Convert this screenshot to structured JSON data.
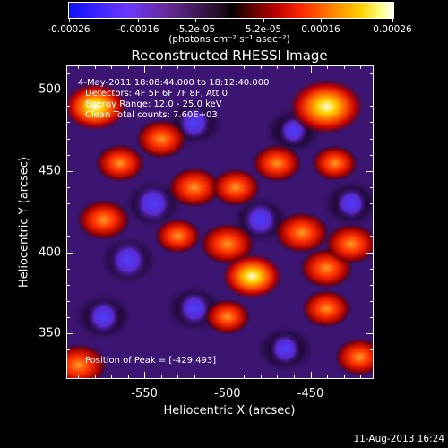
{
  "colorbar": {
    "tick_labels": [
      "-0.00026",
      "-0.00016",
      "-5.2e-05",
      "5.2e-05",
      "0.00016",
      "0.00026"
    ],
    "units_text": "(photons cm⁻² s⁻¹ asec⁻²)"
  },
  "plot": {
    "title": "Reconstructed RHESSI Image",
    "xlabel": "Heliocentric X (arcsec)",
    "ylabel": "Heliocentric Y (arcsec)",
    "xticks": [
      "-550",
      "-500",
      "-450"
    ],
    "yticks": [
      "500",
      "450",
      "400",
      "350"
    ],
    "annotations": {
      "time": "4-May-2011 18:08:44.000 to 18:12:40.000",
      "detectors": "Detectors: 4F 5F 6F 7F 8F, Att 0",
      "energy": "Energy Range: 12.0 - 25.0 keV",
      "clean": "Clean     Total counts: 7.60E+03",
      "peak": "Position of Peak = [-429,493]"
    }
  },
  "footer": {
    "date": "11-Aug-2013 16:24"
  },
  "chart_data": {
    "type": "heatmap",
    "title": "Reconstructed RHESSI Image",
    "xlabel": "Heliocentric X (arcsec)",
    "ylabel": "Heliocentric Y (arcsec)",
    "xlim": [
      -597,
      -412
    ],
    "ylim": [
      322,
      515
    ],
    "xticks": [
      -550,
      -500,
      -450
    ],
    "yticks": [
      350,
      400,
      450,
      500
    ],
    "colorbar_range": [
      -0.00026,
      0.00026
    ],
    "peak_position": [
      -429,
      493
    ],
    "bright_sources": [
      {
        "x": -440,
        "y": 490,
        "intensity": 0.00026
      },
      {
        "x": -580,
        "y": 490,
        "intensity": 0.0002
      },
      {
        "x": -565,
        "y": 455,
        "intensity": 0.00012
      },
      {
        "x": -540,
        "y": 470,
        "intensity": 0.00013
      },
      {
        "x": -520,
        "y": 440,
        "intensity": 0.00014
      },
      {
        "x": -575,
        "y": 420,
        "intensity": 0.00014
      },
      {
        "x": -495,
        "y": 440,
        "intensity": 0.00012
      },
      {
        "x": -470,
        "y": 455,
        "intensity": 0.00012
      },
      {
        "x": -500,
        "y": 405,
        "intensity": 0.00015
      },
      {
        "x": -455,
        "y": 412,
        "intensity": 0.00015
      },
      {
        "x": -485,
        "y": 385,
        "intensity": 0.00018
      },
      {
        "x": -440,
        "y": 390,
        "intensity": 0.00014
      },
      {
        "x": -425,
        "y": 405,
        "intensity": 0.00014
      },
      {
        "x": -440,
        "y": 365,
        "intensity": 0.00012
      },
      {
        "x": -500,
        "y": 360,
        "intensity": 0.0001
      },
      {
        "x": -590,
        "y": 330,
        "intensity": 0.00016
      },
      {
        "x": -420,
        "y": 335,
        "intensity": 0.00012
      },
      {
        "x": -435,
        "y": 455,
        "intensity": 0.0001
      },
      {
        "x": -530,
        "y": 410,
        "intensity": 0.0001
      }
    ],
    "dark_sources": [
      {
        "x": -545,
        "y": 430,
        "intensity": -0.00018
      },
      {
        "x": -520,
        "y": 480,
        "intensity": -0.00014
      },
      {
        "x": -480,
        "y": 420,
        "intensity": -0.00016
      },
      {
        "x": -560,
        "y": 395,
        "intensity": -0.00018
      },
      {
        "x": -520,
        "y": 365,
        "intensity": -0.00014
      },
      {
        "x": -465,
        "y": 340,
        "intensity": -0.00012
      },
      {
        "x": -575,
        "y": 360,
        "intensity": -0.00014
      },
      {
        "x": -460,
        "y": 475,
        "intensity": -0.0001
      },
      {
        "x": -425,
        "y": 430,
        "intensity": -0.00012
      }
    ]
  }
}
